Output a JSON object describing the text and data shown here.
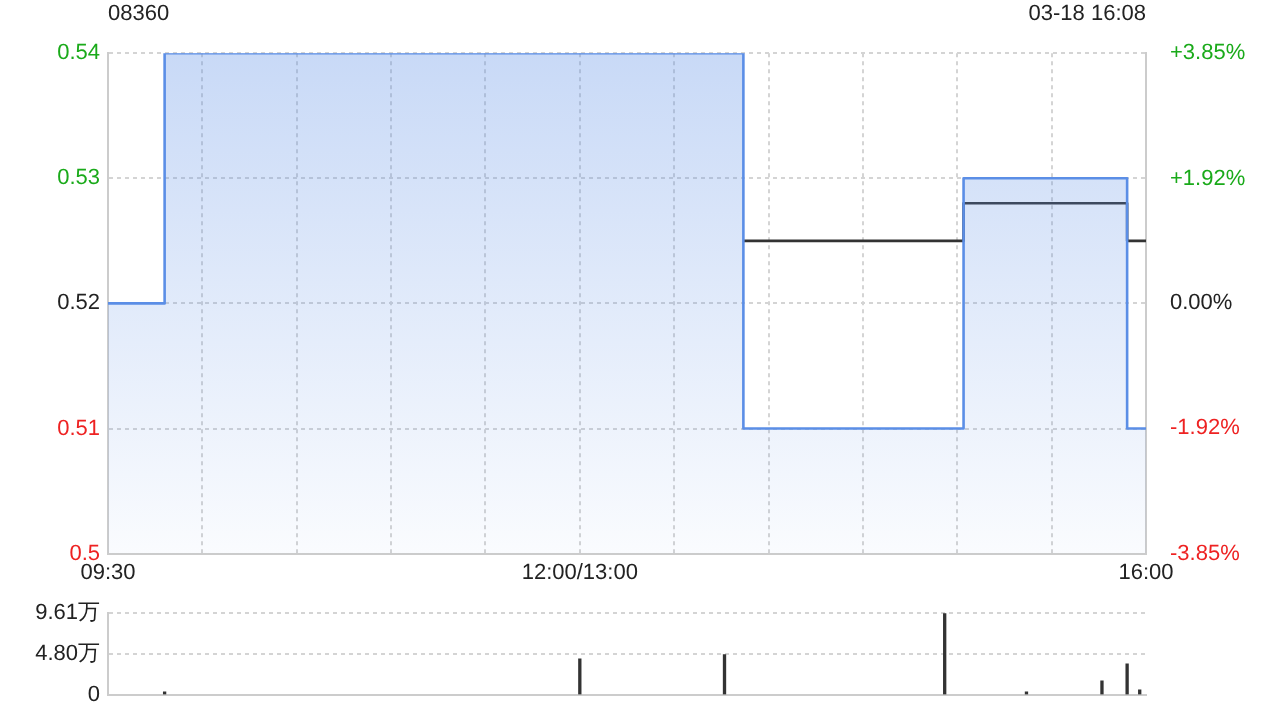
{
  "chart_data": [
    {
      "type": "step",
      "title": "08360",
      "annotations": [
        "03-18 16:08"
      ],
      "categories": [
        "09:30",
        null,
        null,
        null,
        null,
        null,
        null,
        null,
        null,
        null,
        null,
        null,
        null,
        null,
        null,
        null,
        null,
        null,
        null,
        null,
        null,
        null,
        null,
        null,
        null,
        null,
        null,
        null,
        null,
        null,
        null,
        null,
        null,
        null,
        null,
        null,
        null,
        null,
        null,
        null,
        null,
        null,
        null,
        null,
        null,
        null,
        null,
        null,
        null,
        null,
        null,
        null,
        null,
        null,
        null,
        null,
        null,
        null,
        null,
        null,
        null,
        null,
        null,
        null,
        null,
        null,
        null,
        null,
        null,
        null,
        null,
        null,
        null,
        null,
        null,
        "12:00/13:00",
        null,
        null,
        null,
        null,
        null,
        null,
        null,
        null,
        null,
        null,
        null,
        null,
        null,
        null,
        null,
        null,
        null,
        null,
        null,
        null,
        null,
        null,
        null,
        null,
        null,
        null,
        null,
        null,
        null,
        null,
        null,
        null,
        null,
        null,
        null,
        null,
        null,
        null,
        null,
        null,
        null,
        null,
        null,
        null,
        null,
        null,
        null,
        null,
        null,
        null,
        null,
        null,
        null,
        null,
        null,
        null,
        null,
        null,
        null,
        null,
        null,
        null,
        null,
        null,
        null,
        null,
        null,
        null,
        null,
        null,
        null,
        null,
        null,
        null,
        null,
        null,
        null,
        null,
        null,
        null,
        null,
        null,
        null,
        null,
        null,
        null,
        null,
        null,
        null,
        "16:00"
      ],
      "series": [
        {
          "type": "area",
          "color": "#5b8ee6",
          "values": [
            0.52,
            0.52,
            0.52,
            0.52,
            0.52,
            0.52,
            0.52,
            0.52,
            0.52,
            0.54,
            0.54,
            0.54,
            0.54,
            0.54,
            0.54,
            0.54,
            0.54,
            0.54,
            0.54,
            0.54,
            0.54,
            0.54,
            0.54,
            0.54,
            0.54,
            0.54,
            0.54,
            0.54,
            0.54,
            0.54,
            0.54,
            0.54,
            0.54,
            0.54,
            0.54,
            0.54,
            0.54,
            0.54,
            0.54,
            0.54,
            0.54,
            0.54,
            0.54,
            0.54,
            0.54,
            0.54,
            0.54,
            0.54,
            0.54,
            0.54,
            0.54,
            0.54,
            0.54,
            0.54,
            0.54,
            0.54,
            0.54,
            0.54,
            0.54,
            0.54,
            0.54,
            0.54,
            0.54,
            0.54,
            0.54,
            0.54,
            0.54,
            0.54,
            0.54,
            0.54,
            0.54,
            0.54,
            0.54,
            0.54,
            0.54,
            0.54,
            0.54,
            0.54,
            0.54,
            0.54,
            0.54,
            0.54,
            0.54,
            0.54,
            0.54,
            0.54,
            0.54,
            0.54,
            0.54,
            0.54,
            0.54,
            0.54,
            0.54,
            0.54,
            0.54,
            0.54,
            0.54,
            0.54,
            0.54,
            0.54,
            0.54,
            0.51,
            0.51,
            0.51,
            0.51,
            0.51,
            0.51,
            0.51,
            0.51,
            0.51,
            0.51,
            0.51,
            0.51,
            0.51,
            0.51,
            0.51,
            0.51,
            0.51,
            0.51,
            0.51,
            0.51,
            0.51,
            0.51,
            0.51,
            0.51,
            0.51,
            0.51,
            0.51,
            0.51,
            0.51,
            0.51,
            0.51,
            0.51,
            0.51,
            0.51,
            0.51,
            0.53,
            0.53,
            0.53,
            0.53,
            0.53,
            0.53,
            0.53,
            0.53,
            0.53,
            0.53,
            0.53,
            0.53,
            0.53,
            0.53,
            0.53,
            0.53,
            0.53,
            0.53,
            0.53,
            0.53,
            0.53,
            0.53,
            0.53,
            0.53,
            0.53,
            0.53,
            0.51,
            0.51,
            0.51,
            0.51
          ]
        },
        {
          "color": "#333333",
          "values": [
            null,
            null,
            null,
            null,
            null,
            null,
            null,
            null,
            null,
            null,
            null,
            null,
            null,
            null,
            null,
            null,
            null,
            null,
            null,
            null,
            null,
            null,
            null,
            null,
            null,
            null,
            null,
            null,
            null,
            null,
            null,
            null,
            null,
            null,
            null,
            null,
            null,
            null,
            null,
            null,
            null,
            null,
            null,
            null,
            null,
            null,
            null,
            null,
            null,
            null,
            null,
            null,
            null,
            null,
            null,
            null,
            null,
            null,
            null,
            null,
            null,
            null,
            null,
            null,
            null,
            null,
            null,
            null,
            null,
            null,
            null,
            null,
            null,
            null,
            null,
            null,
            null,
            null,
            null,
            null,
            null,
            null,
            null,
            null,
            null,
            null,
            null,
            null,
            null,
            null,
            null,
            null,
            null,
            null,
            null,
            null,
            null,
            null,
            null,
            null,
            null,
            0.525,
            0.525,
            0.525,
            0.525,
            0.525,
            0.525,
            0.525,
            0.525,
            0.525,
            0.525,
            0.525,
            0.525,
            0.525,
            0.525,
            0.525,
            0.525,
            0.525,
            0.525,
            0.525,
            0.525,
            0.525,
            0.525,
            0.525,
            0.525,
            0.525,
            0.525,
            0.525,
            0.525,
            0.525,
            0.525,
            0.525,
            0.525,
            0.525,
            0.525,
            0.525,
            0.528,
            0.528,
            0.528,
            0.528,
            0.528,
            0.528,
            0.528,
            0.528,
            0.528,
            0.528,
            0.528,
            0.528,
            0.528,
            0.528,
            0.528,
            0.528,
            0.528,
            0.528,
            0.528,
            0.528,
            0.528,
            0.528,
            0.528,
            0.528,
            0.528,
            0.528,
            0.525,
            0.525,
            0.525,
            0.525
          ]
        }
      ],
      "ylim": [
        0.5,
        0.54
      ],
      "yticks": [
        0.5,
        0.51,
        0.52,
        0.53,
        0.54
      ],
      "y2lim": [
        -3.85,
        3.85
      ],
      "y2ticks": [
        {
          "value": -3.85,
          "label": "-3.85%"
        },
        {
          "value": -1.92,
          "label": "-1.92%"
        },
        {
          "value": 0,
          "label": "0.00%"
        },
        {
          "value": 1.92,
          "label": "+1.92%"
        },
        {
          "value": 3.85,
          "label": "+3.85%"
        }
      ],
      "grid": true,
      "legend": false,
      "marker": "none",
      "line_style": "solid"
    },
    {
      "type": "bar",
      "categories": [
        null,
        null,
        null,
        null,
        null,
        null,
        null,
        null,
        null,
        null,
        null,
        null,
        null,
        null,
        null,
        null,
        null,
        null,
        null,
        null,
        null,
        null,
        null,
        null,
        null,
        null,
        null,
        null,
        null,
        null,
        null,
        null,
        null,
        null,
        null,
        null,
        null,
        null,
        null,
        null,
        null,
        null,
        null,
        null,
        null,
        null,
        null,
        null,
        null,
        null,
        null,
        null,
        null,
        null,
        null,
        null,
        null,
        null,
        null,
        null,
        null,
        null,
        null,
        null,
        null,
        null,
        null,
        null,
        null,
        null,
        null,
        null,
        null,
        null,
        null,
        null,
        null,
        null,
        null,
        null,
        null,
        null,
        null,
        null,
        null,
        null,
        null,
        null,
        null,
        null,
        null,
        null,
        null,
        null,
        null,
        null,
        null,
        null,
        null,
        null,
        null,
        null,
        null,
        null,
        null,
        null,
        null,
        null,
        null,
        null,
        null,
        null,
        null,
        null,
        null,
        null,
        null,
        null,
        null,
        null,
        null,
        null,
        null,
        null,
        null,
        null,
        null,
        null,
        null,
        null,
        null,
        null,
        null,
        null,
        null,
        null,
        null,
        null,
        null,
        null,
        null,
        null,
        null,
        null,
        null,
        null,
        null,
        null,
        null,
        null,
        null,
        null,
        null,
        null,
        null,
        null,
        null,
        null,
        null,
        null,
        null,
        null,
        null,
        null,
        null,
        null
      ],
      "values": [
        null,
        null,
        null,
        null,
        null,
        null,
        null,
        null,
        null,
        0.3,
        null,
        null,
        null,
        null,
        null,
        null,
        null,
        null,
        null,
        null,
        null,
        null,
        null,
        null,
        null,
        null,
        null,
        null,
        null,
        null,
        null,
        null,
        null,
        null,
        null,
        null,
        null,
        null,
        null,
        null,
        null,
        null,
        null,
        null,
        null,
        null,
        null,
        null,
        null,
        null,
        null,
        null,
        null,
        null,
        null,
        null,
        null,
        null,
        null,
        null,
        null,
        null,
        null,
        null,
        null,
        null,
        null,
        null,
        null,
        null,
        null,
        null,
        null,
        null,
        null,
        4.2,
        null,
        null,
        null,
        null,
        null,
        null,
        null,
        null,
        null,
        null,
        null,
        null,
        null,
        null,
        null,
        null,
        null,
        null,
        null,
        null,
        null,
        null,
        4.7,
        null,
        null,
        null,
        null,
        null,
        null,
        null,
        null,
        null,
        null,
        null,
        null,
        null,
        null,
        null,
        null,
        null,
        null,
        null,
        null,
        null,
        null,
        null,
        null,
        null,
        null,
        null,
        null,
        null,
        null,
        null,
        null,
        null,
        null,
        9.61,
        null,
        null,
        null,
        null,
        null,
        null,
        null,
        null,
        null,
        null,
        null,
        null,
        0.3,
        null,
        null,
        null,
        null,
        null,
        null,
        null,
        null,
        null,
        null,
        null,
        1.6,
        null,
        null,
        null,
        3.6,
        null,
        0.56,
        null
      ],
      "color": "#333333",
      "ylim": [
        0,
        9.61
      ],
      "yticks": [
        0,
        {
          "value": 4.8,
          "label": "4.80万"
        },
        {
          "value": 9.61,
          "label": "9.61万"
        }
      ],
      "grid": "y",
      "tick_labels": "y",
      "legend": false
    }
  ]
}
